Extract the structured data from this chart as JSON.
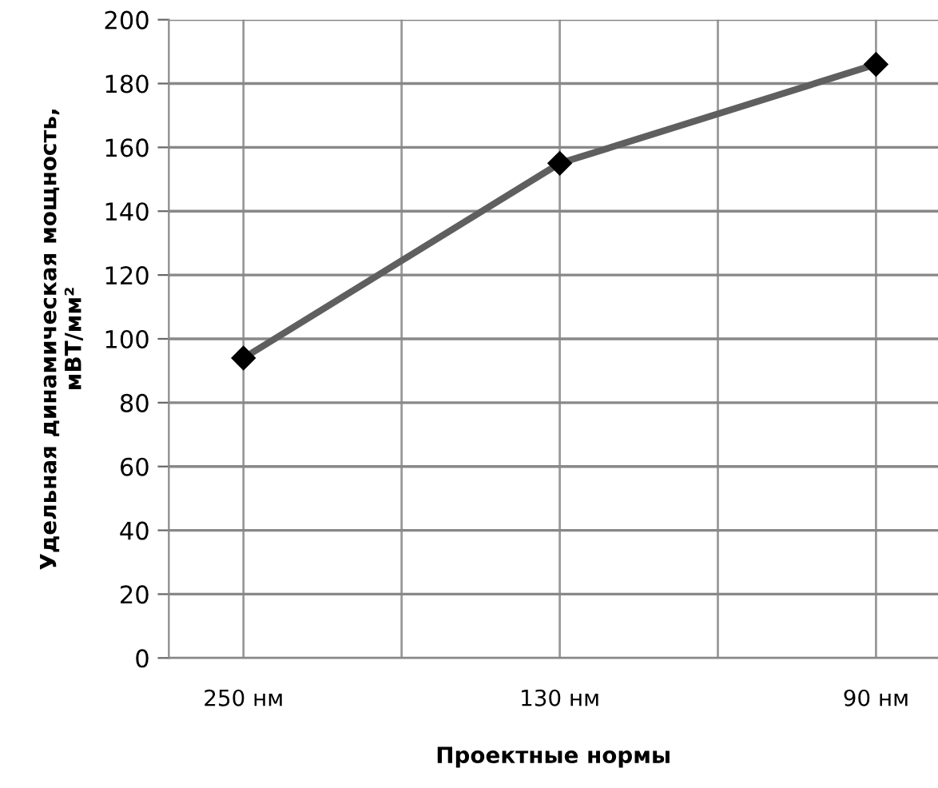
{
  "chart_data": {
    "type": "line",
    "xlabel": "Проектные нормы",
    "ylabel": "Удельная динамическая мощность,\nмВТ/мм²",
    "categories": [
      "250 нм",
      "130 нм",
      "90 нм"
    ],
    "series": [
      {
        "color": "#5f5f5f",
        "values": [
          94,
          155,
          186
        ]
      }
    ],
    "marker": "diamond",
    "line_style": "solid",
    "grid": true,
    "ylim": [
      0,
      200
    ],
    "yticks": [
      0,
      20,
      40,
      60,
      80,
      100,
      120,
      140,
      160,
      180,
      200
    ]
  }
}
